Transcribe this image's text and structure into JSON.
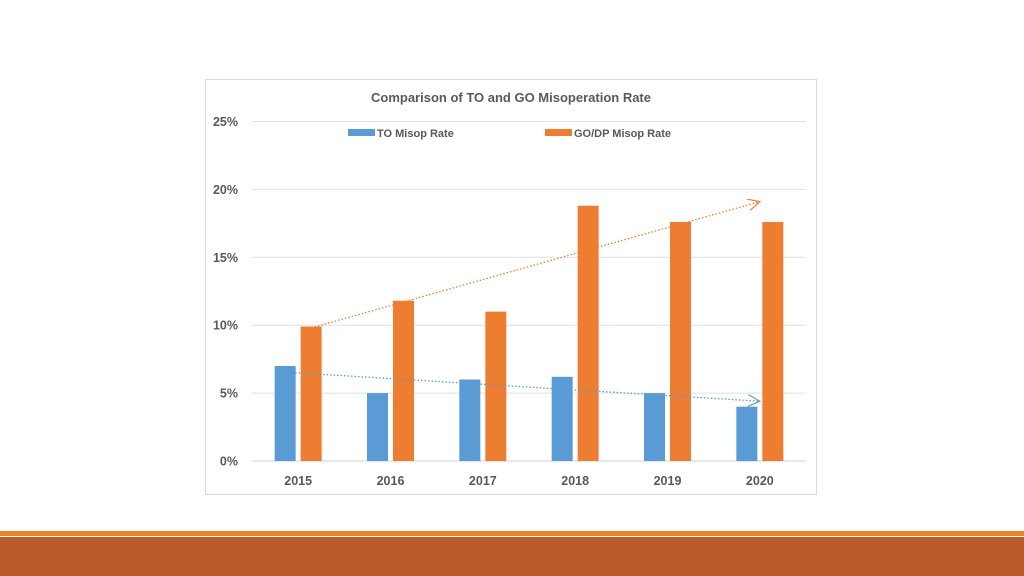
{
  "chart_data": {
    "type": "bar",
    "title": "Comparison of TO and GO Misoperation Rate",
    "xlabel": "",
    "ylabel": "",
    "categories": [
      "2015",
      "2016",
      "2017",
      "2018",
      "2019",
      "2020"
    ],
    "ylim": [
      0,
      25
    ],
    "yticks": [
      0,
      5,
      10,
      15,
      20,
      25
    ],
    "ytick_labels": [
      "0%",
      "5%",
      "10%",
      "15%",
      "20%",
      "25%"
    ],
    "grid": true,
    "legend_position": "top",
    "series": [
      {
        "name": "TO Misop Rate",
        "values": [
          7.0,
          5.0,
          6.0,
          6.2,
          5.0,
          4.0
        ],
        "color": "#5b9bd5",
        "trend": {
          "from": 6.5,
          "to": 4.4
        }
      },
      {
        "name": "GO/DP Misop Rate",
        "values": [
          9.9,
          11.8,
          11.0,
          18.8,
          17.6,
          17.6
        ],
        "color": "#ed7d31",
        "trend": {
          "from": 9.8,
          "to": 19.1
        }
      }
    ]
  },
  "theme": {
    "footer_thin_color": "#e8842c",
    "footer_band_color": "#bb5a2b",
    "grid_color": "#e0e0e0",
    "text_color": "#595959"
  }
}
